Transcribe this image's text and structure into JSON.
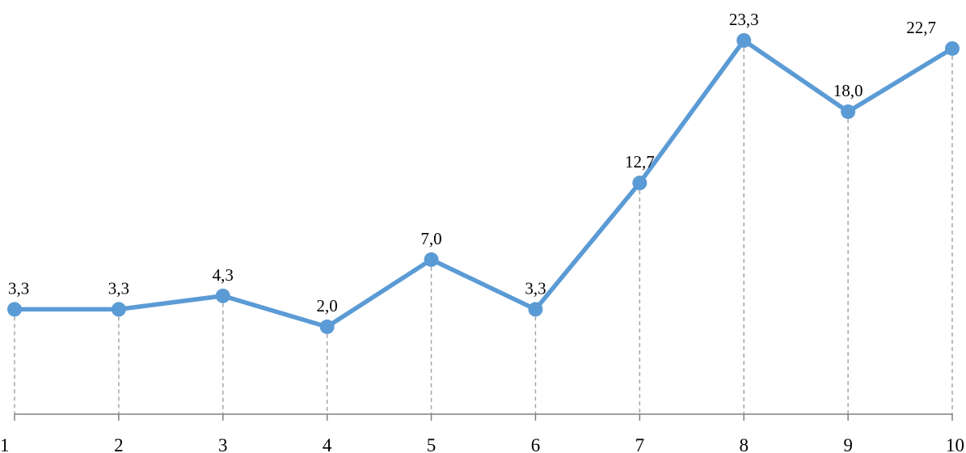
{
  "chart_data": {
    "type": "line",
    "categories": [
      "1",
      "2",
      "3",
      "4",
      "5",
      "6",
      "7",
      "8",
      "9",
      "10"
    ],
    "series": [
      {
        "values": [
          3.3,
          3.3,
          4.3,
          2.0,
          7.0,
          3.3,
          12.7,
          23.3,
          18.0,
          22.7
        ],
        "labels": [
          "3,3",
          "3,3",
          "4,3",
          "2,0",
          "7,0",
          "3,3",
          "12,7",
          "23,3",
          "18,0",
          "22,7"
        ]
      }
    ],
    "title": "",
    "xlabel": "",
    "ylabel": "",
    "ylim": [
      -4.5,
      23.3
    ],
    "grid": false,
    "drop_lines": true,
    "colors": {
      "series": "#5B9BD5",
      "drop_line": "#A6A6A6",
      "axis": "#808080"
    }
  }
}
